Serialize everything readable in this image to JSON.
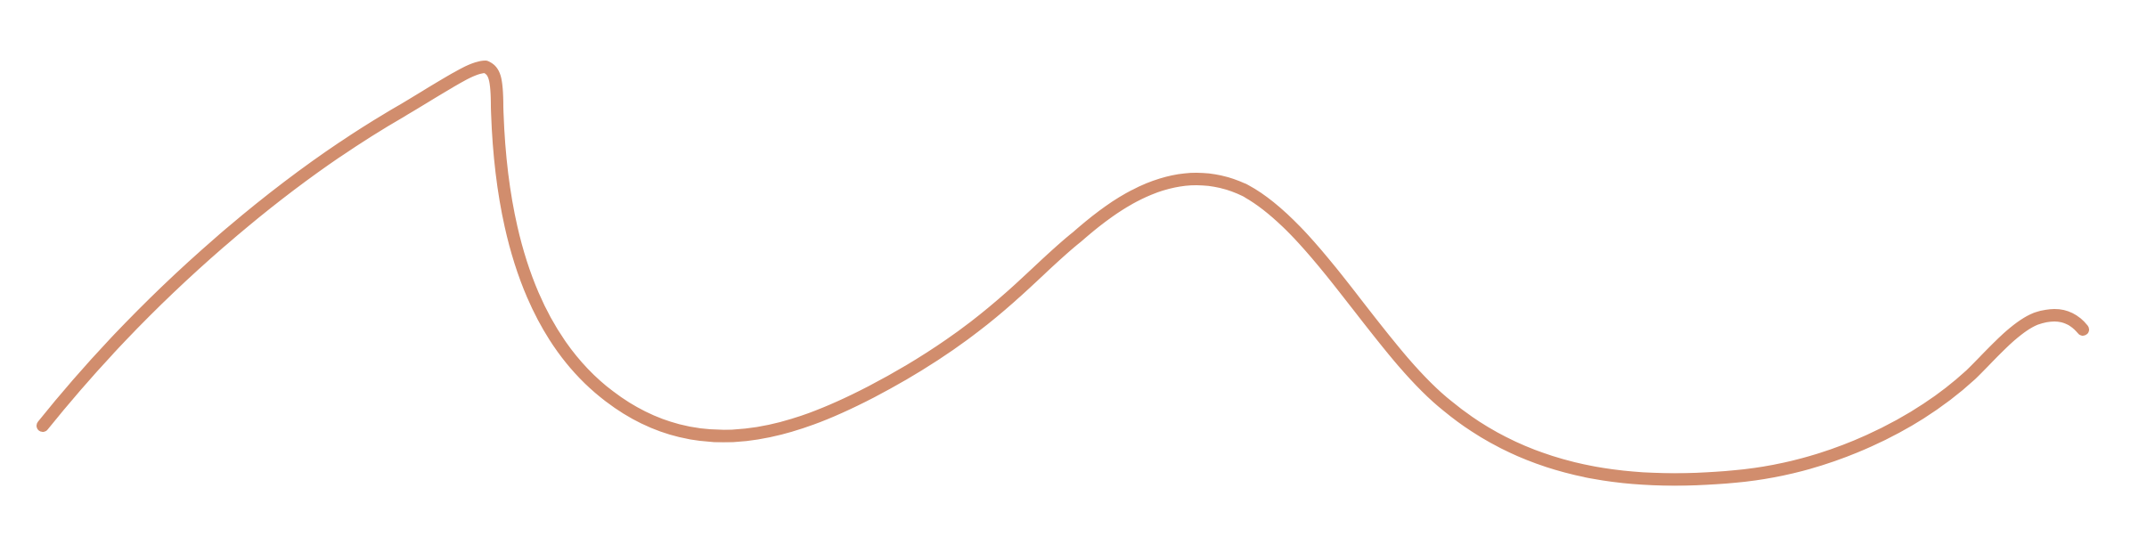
{
  "drawing": {
    "stroke_color": "#D18D6D",
    "background_color": "#FFFFFF",
    "shape": "freehand-wavy-line"
  }
}
